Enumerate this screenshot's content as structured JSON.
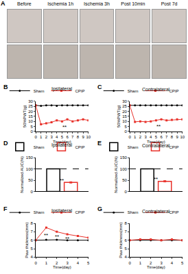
{
  "photo_panel": {
    "title": "A",
    "captions": [
      "Before",
      "Ischemia 1h",
      "Ischemia 3h",
      "Post 10min",
      "Post 7d"
    ]
  },
  "chart_data": [
    {
      "type": "line",
      "title": "B",
      "subtitle": "Ipsilateral",
      "x_label": "Time(day)",
      "y_label": "50%PWT(g)",
      "x": [
        0,
        1,
        2,
        3,
        4,
        5,
        6,
        7,
        8,
        9,
        10
      ],
      "series": [
        {
          "name": "Sham",
          "color": "#000000",
          "marker": "circle",
          "line_style": "solid",
          "values": [
            26,
            25.5,
            26,
            26,
            25.5,
            26,
            26,
            26,
            26,
            26,
            26
          ]
        },
        {
          "name": "CPIP",
          "color": "#e8312a",
          "marker": "square",
          "line_style": "solid",
          "values": [
            26,
            7,
            8,
            9,
            11,
            10,
            12,
            10,
            11,
            12,
            11
          ]
        }
      ],
      "xlim": [
        0,
        10
      ],
      "xticks": [
        0,
        1,
        2,
        3,
        4,
        5,
        6,
        7,
        8,
        9,
        10
      ],
      "ylim": [
        0,
        30
      ],
      "yticks": [
        0,
        5,
        10,
        15,
        20,
        25,
        30
      ],
      "legend": "top right",
      "annotations": [
        {
          "text": "**",
          "x": 5.5,
          "y": 4
        }
      ]
    },
    {
      "type": "line",
      "title": "C",
      "subtitle": "Contralateral",
      "x_label": "Time(day)",
      "y_label": "50%PWT(g)",
      "x": [
        0,
        1,
        2,
        3,
        4,
        5,
        6,
        7,
        8,
        9,
        10
      ],
      "series": [
        {
          "name": "Sham",
          "color": "#000000",
          "marker": "circle",
          "line_style": "solid",
          "values": [
            26,
            26,
            26,
            26,
            26,
            26,
            26,
            26,
            26,
            26,
            26
          ]
        },
        {
          "name": "CPIP",
          "color": "#e8312a",
          "marker": "square",
          "line_style": "solid",
          "values": [
            26,
            9.5,
            10,
            9.5,
            10,
            11,
            12,
            11,
            11.5,
            12,
            12
          ]
        }
      ],
      "xlim": [
        0,
        10
      ],
      "xticks": [
        0,
        1,
        2,
        3,
        4,
        5,
        6,
        7,
        8,
        9,
        10
      ],
      "ylim": [
        0,
        30
      ],
      "yticks": [
        0,
        5,
        10,
        15,
        20,
        25,
        30
      ],
      "legend": "top right",
      "annotations": [
        {
          "text": "**",
          "x": 5.5,
          "y": 5
        }
      ]
    },
    {
      "type": "bar",
      "title": "D",
      "subtitle": "Ipsilateral",
      "y_label": "Normalized AUC(%)",
      "categories": [
        null
      ],
      "series": [
        {
          "name": "Sham",
          "color": "#000000",
          "values": [
            100
          ]
        },
        {
          "name": "CPIP",
          "color": "#e8312a",
          "values": [
            40
          ],
          "errors": [
            3
          ]
        }
      ],
      "ylim": [
        0,
        150
      ],
      "yticks": [
        0,
        50,
        100,
        150
      ],
      "tick_labels": "y",
      "legend": "top right",
      "reference_line": {
        "value": 100,
        "line_style": "dash"
      },
      "annotations": [
        {
          "text": "**",
          "x": 0,
          "y": 50
        }
      ]
    },
    {
      "type": "bar",
      "title": "E",
      "subtitle": "Contralateral",
      "y_label": "Normalized AUC(%)",
      "categories": [
        null
      ],
      "series": [
        {
          "name": "Sham",
          "color": "#000000",
          "values": [
            100
          ]
        },
        {
          "name": "CPIP",
          "color": "#e8312a",
          "values": [
            45
          ],
          "errors": [
            3
          ]
        }
      ],
      "ylim": [
        0,
        150
      ],
      "yticks": [
        0,
        50,
        100,
        150
      ],
      "tick_labels": "y",
      "legend": "top right",
      "reference_line": {
        "value": 100,
        "line_style": "dash"
      },
      "annotations": [
        {
          "text": "**",
          "x": 0,
          "y": 55
        }
      ]
    },
    {
      "type": "line",
      "title": "F",
      "subtitle": "Ipsilateral",
      "x_label": "Time(day)",
      "y_label": "Paw thickness(mm)",
      "x": [
        0,
        1,
        2,
        3,
        4,
        5
      ],
      "series": [
        {
          "name": "Sham",
          "color": "#000000",
          "marker": "circle",
          "line_style": "solid",
          "values": [
            6.0,
            6.05,
            6.05,
            6.0,
            6.0,
            6.0
          ]
        },
        {
          "name": "CPIP",
          "color": "#e8312a",
          "marker": "square",
          "line_style": "solid",
          "values": [
            6.0,
            7.5,
            7.0,
            6.7,
            6.5,
            6.3
          ]
        }
      ],
      "xlim": [
        0,
        5
      ],
      "xticks": [
        0,
        1,
        2,
        3,
        4,
        5
      ],
      "ylim": [
        4,
        8
      ],
      "yticks": [
        4,
        5,
        6,
        7,
        8
      ],
      "legend": "top right",
      "annotations": [
        {
          "text": "**",
          "x": 1,
          "y": 6.6
        },
        {
          "text": "**",
          "x": 2,
          "y": 6.4
        },
        {
          "text": "**",
          "x": 3,
          "y": 6.2
        }
      ]
    },
    {
      "type": "line",
      "title": "G",
      "subtitle": "Contralateral",
      "x_label": "Time(day)",
      "y_label": "Paw thickness(mm)",
      "x": [
        0,
        1,
        2,
        3,
        4,
        5
      ],
      "series": [
        {
          "name": "Sham",
          "color": "#000000",
          "marker": "circle",
          "line_style": "solid",
          "values": [
            6.0,
            6.0,
            6.0,
            6.0,
            6.0,
            6.0
          ]
        },
        {
          "name": "CPIP",
          "color": "#e8312a",
          "marker": "square",
          "line_style": "solid",
          "values": [
            6.0,
            6.1,
            6.1,
            6.0,
            6.1,
            6.0
          ]
        }
      ],
      "xlim": [
        0,
        5
      ],
      "xticks": [
        0,
        1,
        2,
        3,
        4,
        5
      ],
      "ylim": [
        4,
        8
      ],
      "yticks": [
        4,
        5,
        6,
        7,
        8
      ],
      "legend": "top right"
    }
  ]
}
